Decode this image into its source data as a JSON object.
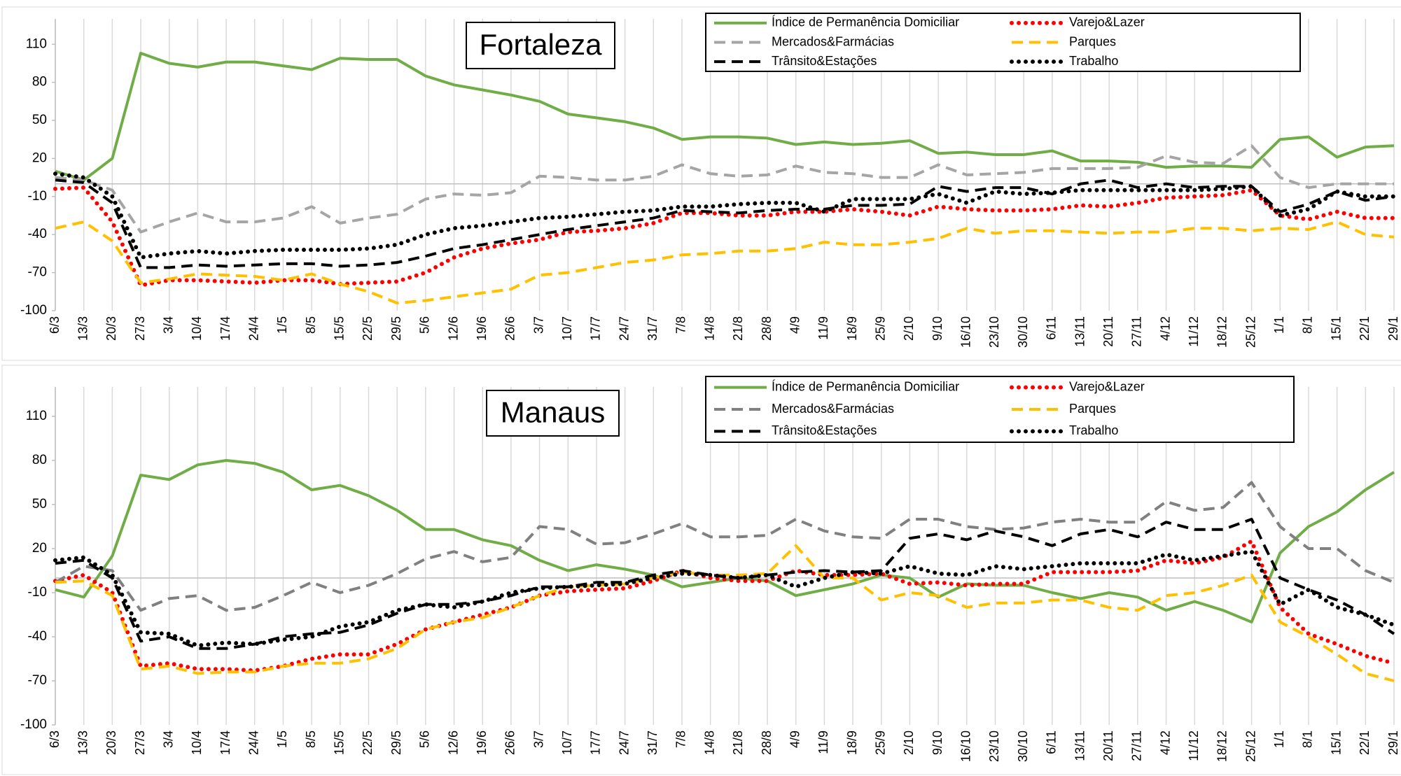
{
  "chart_data": [
    {
      "type": "line",
      "title": "Fortaleza",
      "categories": [
        "6/3",
        "13/3",
        "20/3",
        "27/3",
        "3/4",
        "10/4",
        "17/4",
        "24/4",
        "1/5",
        "8/5",
        "15/5",
        "22/5",
        "29/5",
        "5/6",
        "12/6",
        "19/6",
        "26/6",
        "3/7",
        "10/7",
        "17/7",
        "24/7",
        "31/7",
        "7/8",
        "14/8",
        "21/8",
        "28/8",
        "4/9",
        "11/9",
        "18/9",
        "25/9",
        "2/10",
        "9/10",
        "16/10",
        "23/10",
        "30/10",
        "6/11",
        "13/11",
        "20/11",
        "27/11",
        "4/12",
        "11/12",
        "18/12",
        "25/12",
        "1/1",
        "8/1",
        "15/1",
        "22/1",
        "29/1"
      ],
      "series": [
        {
          "name": "Índice de Permanência Domiciliar",
          "color": "#70ad47",
          "style": "solid",
          "values": [
            10,
            3,
            20,
            103,
            95,
            92,
            96,
            96,
            93,
            90,
            99,
            98,
            98,
            85,
            78,
            74,
            70,
            65,
            55,
            52,
            49,
            44,
            35,
            37,
            37,
            36,
            31,
            33,
            31,
            32,
            34,
            24,
            25,
            23,
            23,
            26,
            18,
            18,
            17,
            13,
            14,
            14,
            13,
            35,
            37,
            21,
            29,
            30
          ]
        },
        {
          "name": "Varejo&Lazer",
          "color": "#ff0000",
          "style": "dot",
          "values": [
            -4,
            -3,
            -30,
            -80,
            -76,
            -76,
            -77,
            -78,
            -76,
            -76,
            -79,
            -78,
            -77,
            -70,
            -58,
            -51,
            -47,
            -44,
            -38,
            -37,
            -35,
            -31,
            -23,
            -23,
            -25,
            -25,
            -22,
            -22,
            -20,
            -22,
            -25,
            -18,
            -20,
            -21,
            -21,
            -20,
            -17,
            -18,
            -15,
            -11,
            -10,
            -9,
            -5,
            -25,
            -28,
            -22,
            -27,
            -27
          ]
        },
        {
          "name": "Mercados&Farmácias",
          "color": "#a5a5a5",
          "style": "dash",
          "values": [
            5,
            3,
            -5,
            -38,
            -30,
            -23,
            -30,
            -30,
            -27,
            -18,
            -31,
            -27,
            -24,
            -12,
            -8,
            -9,
            -7,
            6,
            5,
            3,
            3,
            6,
            15,
            8,
            6,
            7,
            14,
            9,
            8,
            5,
            5,
            15,
            7,
            8,
            9,
            12,
            12,
            12,
            13,
            22,
            17,
            16,
            30,
            5,
            -3,
            0,
            0,
            0
          ]
        },
        {
          "name": "Parques",
          "color": "#ffc000",
          "style": "dash",
          "values": [
            -35,
            -30,
            -45,
            -78,
            -75,
            -71,
            -72,
            -73,
            -76,
            -71,
            -79,
            -85,
            -94,
            -92,
            -89,
            -86,
            -83,
            -72,
            -70,
            -66,
            -62,
            -60,
            -56,
            -55,
            -53,
            -53,
            -51,
            -46,
            -48,
            -48,
            -46,
            -43,
            -35,
            -39,
            -37,
            -37,
            -38,
            -39,
            -38,
            -38,
            -35,
            -35,
            -37,
            -35,
            -36,
            -30,
            -40,
            -42
          ]
        },
        {
          "name": "Trânsito&Estações",
          "color": "#000000",
          "style": "dash",
          "values": [
            3,
            1,
            -15,
            -66,
            -66,
            -64,
            -65,
            -64,
            -63,
            -63,
            -65,
            -64,
            -62,
            -57,
            -51,
            -48,
            -44,
            -40,
            -36,
            -33,
            -30,
            -27,
            -21,
            -22,
            -23,
            -21,
            -20,
            -20,
            -17,
            -17,
            -16,
            -2,
            -6,
            -3,
            -3,
            -8,
            0,
            3,
            -3,
            0,
            -3,
            -2,
            -2,
            -22,
            -16,
            -6,
            -13,
            -10
          ]
        },
        {
          "name": "Trabalho",
          "color": "#000000",
          "style": "dot",
          "values": [
            8,
            5,
            -10,
            -58,
            -55,
            -53,
            -55,
            -53,
            -52,
            -52,
            -52,
            -51,
            -48,
            -40,
            -35,
            -33,
            -30,
            -27,
            -26,
            -24,
            -22,
            -21,
            -18,
            -18,
            -16,
            -15,
            -15,
            -22,
            -12,
            -12,
            -12,
            -8,
            -15,
            -6,
            -8,
            -7,
            -5,
            -5,
            -5,
            -5,
            -5,
            -4,
            -2,
            -25,
            -20,
            -6,
            -10,
            -10
          ]
        }
      ],
      "ylim": [
        -100,
        130
      ],
      "yticks": [
        -100,
        -70,
        -40,
        -10,
        20,
        50,
        80,
        110
      ],
      "grid": true,
      "legend": "top-right"
    },
    {
      "type": "line",
      "title": "Manaus",
      "categories": [
        "6/3",
        "13/3",
        "20/3",
        "27/3",
        "3/4",
        "10/4",
        "17/4",
        "24/4",
        "1/5",
        "8/5",
        "15/5",
        "22/5",
        "29/5",
        "5/6",
        "12/6",
        "19/6",
        "26/6",
        "3/7",
        "10/7",
        "17/7",
        "24/7",
        "31/7",
        "7/8",
        "14/8",
        "21/8",
        "28/8",
        "4/9",
        "11/9",
        "18/9",
        "25/9",
        "2/10",
        "9/10",
        "16/10",
        "23/10",
        "30/10",
        "6/11",
        "13/11",
        "20/11",
        "27/11",
        "4/12",
        "11/12",
        "18/12",
        "25/12",
        "1/1",
        "8/1",
        "15/1",
        "22/1",
        "29/1"
      ],
      "series": [
        {
          "name": "Índice de Permanência Domiciliar",
          "color": "#70ad47",
          "style": "solid",
          "values": [
            -8,
            -13,
            15,
            70,
            67,
            77,
            80,
            78,
            72,
            60,
            63,
            56,
            46,
            33,
            33,
            26,
            22,
            12,
            5,
            9,
            6,
            2,
            -6,
            -3,
            0,
            -2,
            -12,
            -8,
            -4,
            2,
            0,
            -13,
            -4,
            -5,
            -5,
            -10,
            -14,
            -10,
            -13,
            -22,
            -16,
            -22,
            -30,
            17,
            35,
            45,
            60,
            72
          ]
        },
        {
          "name": "Varejo&Lazer",
          "color": "#ff0000",
          "style": "dot",
          "values": [
            -2,
            2,
            -10,
            -60,
            -58,
            -62,
            -62,
            -63,
            -60,
            -55,
            -52,
            -52,
            -45,
            -35,
            -30,
            -25,
            -20,
            -12,
            -9,
            -8,
            -7,
            -2,
            5,
            0,
            -2,
            -2,
            5,
            2,
            2,
            3,
            -4,
            -3,
            -5,
            -4,
            -4,
            4,
            4,
            4,
            5,
            12,
            10,
            14,
            25,
            -20,
            -38,
            -45,
            -53,
            -58
          ]
        },
        {
          "name": "Mercados&Farmácias",
          "color": "#808080",
          "style": "dash",
          "values": [
            -3,
            8,
            5,
            -22,
            -14,
            -12,
            -22,
            -20,
            -12,
            -3,
            -10,
            -5,
            3,
            13,
            18,
            11,
            14,
            35,
            33,
            23,
            24,
            30,
            37,
            28,
            28,
            29,
            40,
            32,
            28,
            27,
            40,
            40,
            35,
            33,
            34,
            38,
            40,
            38,
            38,
            52,
            46,
            48,
            65,
            35,
            20,
            20,
            5,
            -3
          ]
        },
        {
          "name": "Parques",
          "color": "#ffc000",
          "style": "dash",
          "values": [
            -3,
            -2,
            -12,
            -62,
            -60,
            -65,
            -64,
            -64,
            -60,
            -58,
            -58,
            -55,
            -48,
            -35,
            -30,
            -27,
            -20,
            -12,
            -6,
            -5,
            -4,
            0,
            4,
            2,
            2,
            3,
            22,
            0,
            0,
            -15,
            -10,
            -12,
            -20,
            -17,
            -17,
            -15,
            -15,
            -20,
            -22,
            -12,
            -10,
            -5,
            2,
            -30,
            -40,
            -52,
            -65,
            -70
          ]
        },
        {
          "name": "Trânsito&Estações",
          "color": "#000000",
          "style": "dash",
          "values": [
            10,
            12,
            0,
            -43,
            -40,
            -48,
            -48,
            -45,
            -40,
            -38,
            -37,
            -32,
            -24,
            -18,
            -18,
            -16,
            -12,
            -6,
            -6,
            -3,
            -3,
            2,
            5,
            2,
            0,
            2,
            4,
            5,
            4,
            5,
            27,
            30,
            26,
            32,
            28,
            22,
            30,
            33,
            28,
            38,
            33,
            33,
            40,
            0,
            -8,
            -15,
            -25,
            -38
          ]
        },
        {
          "name": "Trabalho",
          "color": "#000000",
          "style": "dot",
          "values": [
            12,
            14,
            2,
            -37,
            -38,
            -46,
            -44,
            -45,
            -42,
            -40,
            -33,
            -30,
            -22,
            -18,
            -20,
            -16,
            -10,
            -7,
            -6,
            -5,
            -4,
            0,
            3,
            2,
            0,
            2,
            -6,
            0,
            4,
            3,
            8,
            3,
            2,
            8,
            6,
            8,
            10,
            10,
            10,
            16,
            12,
            15,
            18,
            -18,
            -8,
            -20,
            -25,
            -32
          ]
        }
      ],
      "ylim": [
        -100,
        130
      ],
      "yticks": [
        -100,
        -70,
        -40,
        -10,
        20,
        50,
        80,
        110
      ],
      "grid": true,
      "legend": "top-right"
    }
  ]
}
